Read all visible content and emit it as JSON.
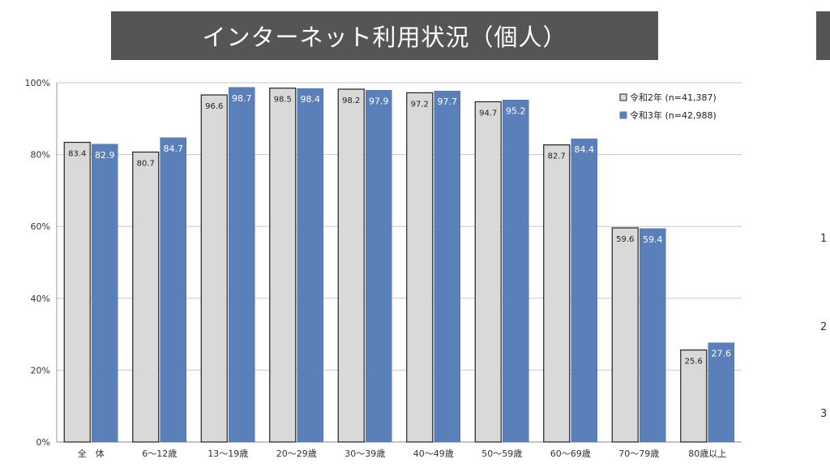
{
  "slide": {
    "title": "インターネット利用状況（個人）",
    "title_bg_color": "#555555",
    "right_fragments": [
      "1",
      "2",
      "3"
    ]
  },
  "chart_data": {
    "type": "bar",
    "categories": [
      "全　体",
      "6～12歳",
      "13～19歳",
      "20～29歳",
      "30～39歳",
      "40～49歳",
      "50～59歳",
      "60～69歳",
      "70～79歳",
      "80歳以上"
    ],
    "series": [
      {
        "name": "令和2年 (n=41,387)",
        "color": "#d9d9d9",
        "values": [
          83.4,
          80.7,
          96.6,
          98.5,
          98.2,
          97.2,
          94.7,
          82.7,
          59.6,
          25.6
        ]
      },
      {
        "name": "令和3年 (n=42,988)",
        "color": "#5b7fb8",
        "values": [
          82.9,
          84.7,
          98.7,
          98.4,
          97.9,
          97.7,
          95.2,
          84.4,
          59.4,
          27.6
        ]
      }
    ],
    "value_labels": {
      "series_0": [
        "83.4",
        "80.7",
        "96.6",
        "98.5",
        "98.2",
        "97.2",
        "94.7",
        "82.7",
        "59.6",
        "25.6"
      ],
      "series_1": [
        "82.9",
        "84.7",
        "98.7",
        "98.4",
        "97.9",
        "97.7",
        "95.2",
        "84.4",
        "59.4",
        "27.6"
      ]
    },
    "ylim": [
      0,
      100
    ],
    "yticks": [
      0,
      20,
      40,
      60,
      80,
      100
    ],
    "ytick_labels": [
      "0%",
      "20%",
      "40%",
      "60%",
      "80%",
      "100%"
    ],
    "grid": true,
    "legend_position": "top-right"
  }
}
